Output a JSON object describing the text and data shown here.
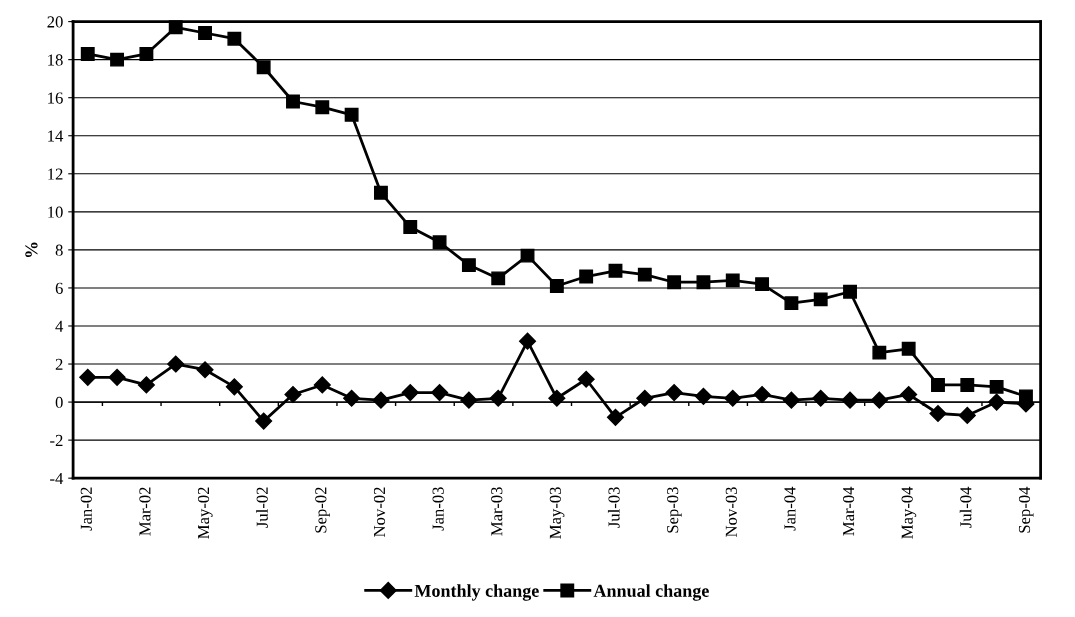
{
  "chart_data": {
    "type": "line",
    "ylabel": "%",
    "categories": [
      "Jan-02",
      null,
      "Mar-02",
      null,
      "May-02",
      null,
      "Jul-02",
      null,
      "Sep-02",
      null,
      "Nov-02",
      null,
      "Jan-03",
      null,
      "Mar-03",
      null,
      "May-03",
      null,
      "Jul-03",
      null,
      "Sep-03",
      null,
      "Nov-03",
      null,
      "Jan-04",
      null,
      "Mar-04",
      null,
      "May-04",
      null,
      "Jul-04",
      null,
      "Sep-04"
    ],
    "series": [
      {
        "name": "Monthly change",
        "color": "#000000",
        "marker": "diamond",
        "values": [
          1.3,
          1.3,
          0.9,
          2.0,
          1.7,
          0.8,
          -1.0,
          0.4,
          0.9,
          0.2,
          0.1,
          0.5,
          0.5,
          0.1,
          0.2,
          3.2,
          0.2,
          1.2,
          -0.8,
          0.2,
          0.5,
          0.3,
          0.2,
          0.4,
          0.1,
          0.2,
          0.1,
          0.1,
          0.4,
          -0.6,
          -0.7,
          0.0,
          -0.1
        ]
      },
      {
        "name": "Annual change",
        "color": "#000000",
        "marker": "square",
        "values": [
          18.3,
          18.0,
          18.3,
          19.7,
          19.4,
          19.1,
          17.6,
          15.8,
          15.5,
          15.1,
          11.0,
          9.2,
          8.4,
          7.2,
          6.5,
          7.7,
          6.1,
          6.6,
          6.9,
          6.7,
          6.3,
          6.3,
          6.4,
          6.2,
          5.2,
          5.4,
          5.8,
          2.6,
          2.8,
          0.9,
          0.9,
          0.8,
          0.3
        ]
      }
    ],
    "ylim": [
      -4,
      20
    ],
    "yticks": [
      -4,
      -2,
      0,
      2,
      4,
      6,
      8,
      10,
      12,
      14,
      16,
      18,
      20
    ],
    "grid": "y",
    "legend": "bottom",
    "line_style": "solid"
  }
}
